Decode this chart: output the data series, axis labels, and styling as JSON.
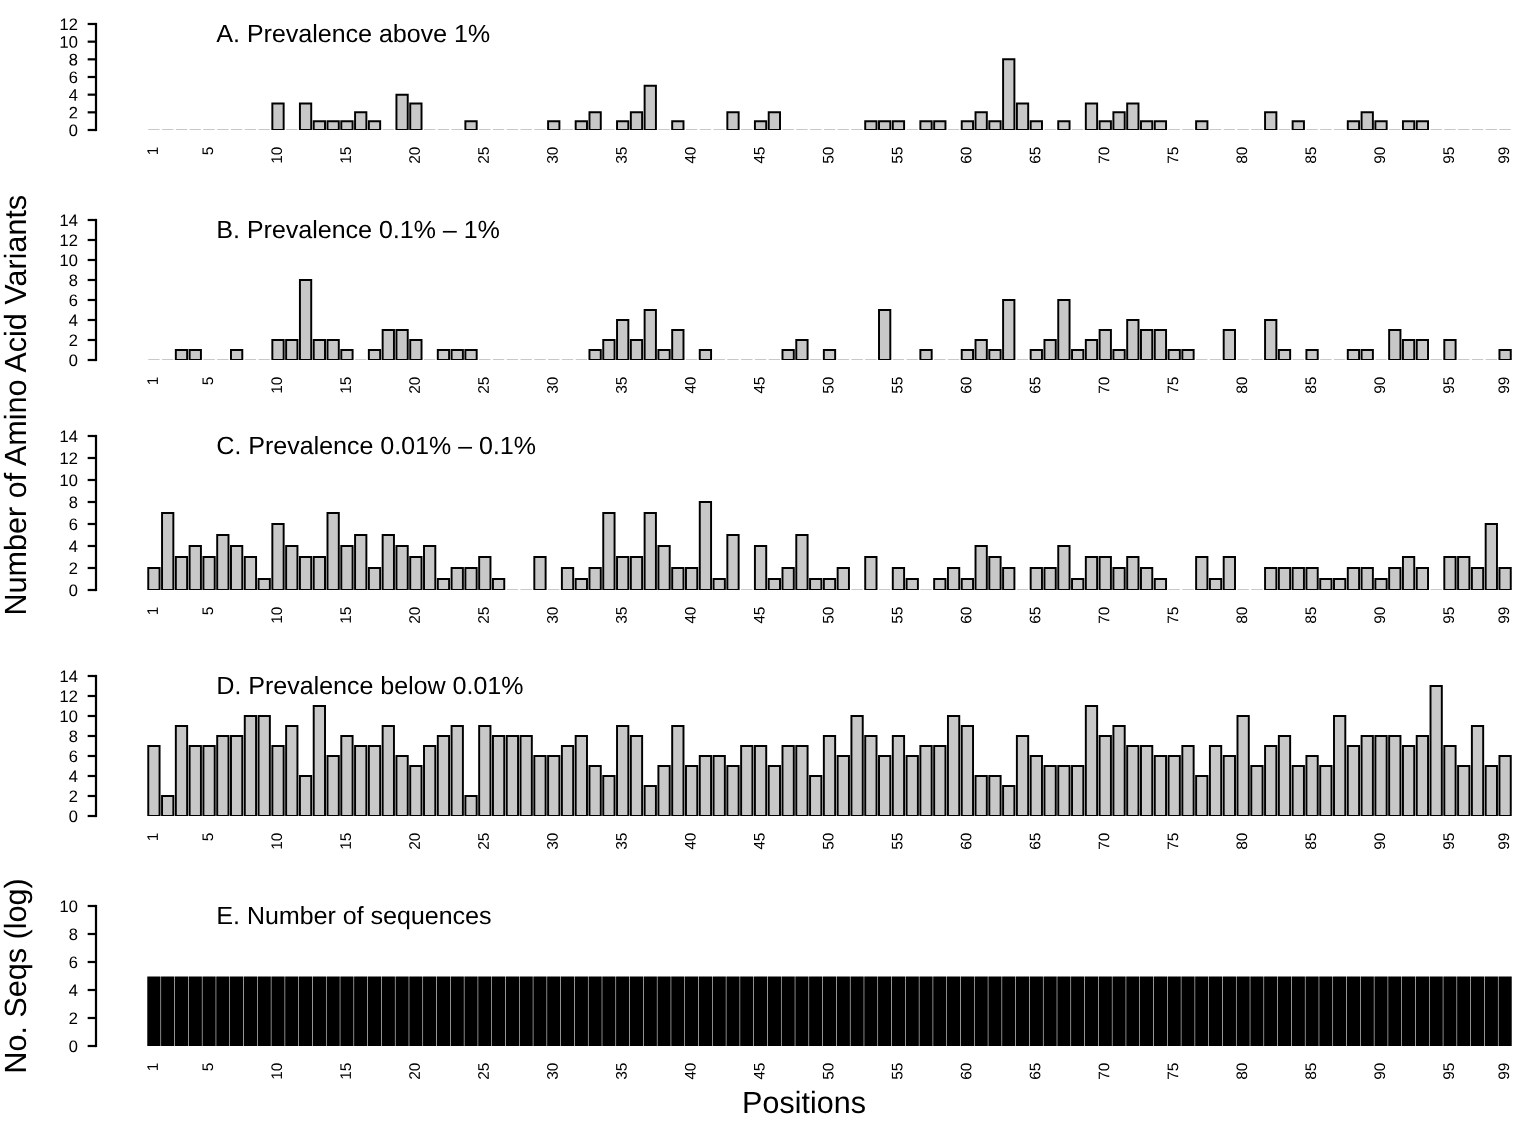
{
  "chart_data": [
    {
      "type": "bar",
      "title": "A. Prevalence above 1%",
      "color": "#c8c8c8",
      "ylim": [
        0,
        12
      ],
      "yticks": [
        0,
        2,
        4,
        6,
        8,
        10,
        12
      ],
      "grid": false,
      "legend": false,
      "categories": [
        "1",
        null,
        null,
        null,
        "5",
        null,
        null,
        null,
        null,
        "10",
        null,
        null,
        null,
        null,
        "15",
        null,
        null,
        null,
        null,
        "20",
        null,
        null,
        null,
        null,
        "25",
        null,
        null,
        null,
        null,
        "30",
        null,
        null,
        null,
        null,
        "35",
        null,
        null,
        null,
        null,
        "40",
        null,
        null,
        null,
        null,
        "45",
        null,
        null,
        null,
        null,
        "50",
        null,
        null,
        null,
        null,
        "55",
        null,
        null,
        null,
        null,
        "60",
        null,
        null,
        null,
        null,
        "65",
        null,
        null,
        null,
        null,
        "70",
        null,
        null,
        null,
        null,
        "75",
        null,
        null,
        null,
        null,
        "80",
        null,
        null,
        null,
        null,
        "85",
        null,
        null,
        null,
        null,
        "90",
        null,
        null,
        null,
        null,
        "95",
        null,
        null,
        null,
        "99"
      ],
      "values": [
        0,
        0,
        0,
        0,
        0,
        0,
        0,
        0,
        0,
        3,
        0,
        3,
        1,
        1,
        1,
        2,
        1,
        0,
        4,
        3,
        0,
        0,
        0,
        1,
        0,
        0,
        0,
        0,
        0,
        1,
        0,
        1,
        2,
        0,
        1,
        2,
        5,
        0,
        1,
        0,
        0,
        0,
        2,
        0,
        1,
        2,
        0,
        0,
        0,
        0,
        0,
        0,
        1,
        1,
        1,
        0,
        1,
        1,
        0,
        1,
        2,
        1,
        8,
        3,
        1,
        0,
        1,
        0,
        3,
        1,
        2,
        3,
        1,
        1,
        0,
        0,
        1,
        0,
        0,
        0,
        0,
        2,
        0,
        1,
        0,
        0,
        0,
        1,
        2,
        1,
        0,
        1,
        1,
        0,
        0,
        0,
        0,
        0,
        0
      ]
    },
    {
      "type": "bar",
      "title": "B. Prevalence 0.1% – 1%",
      "color": "#c8c8c8",
      "ylim": [
        0,
        14
      ],
      "yticks": [
        0,
        2,
        4,
        6,
        8,
        10,
        12,
        14
      ],
      "grid": false,
      "legend": false,
      "categories": [
        "1",
        null,
        null,
        null,
        "5",
        null,
        null,
        null,
        null,
        "10",
        null,
        null,
        null,
        null,
        "15",
        null,
        null,
        null,
        null,
        "20",
        null,
        null,
        null,
        null,
        "25",
        null,
        null,
        null,
        null,
        "30",
        null,
        null,
        null,
        null,
        "35",
        null,
        null,
        null,
        null,
        "40",
        null,
        null,
        null,
        null,
        "45",
        null,
        null,
        null,
        null,
        "50",
        null,
        null,
        null,
        null,
        "55",
        null,
        null,
        null,
        null,
        "60",
        null,
        null,
        null,
        null,
        "65",
        null,
        null,
        null,
        null,
        "70",
        null,
        null,
        null,
        null,
        "75",
        null,
        null,
        null,
        null,
        "80",
        null,
        null,
        null,
        null,
        "85",
        null,
        null,
        null,
        null,
        "90",
        null,
        null,
        null,
        null,
        "95",
        null,
        null,
        null,
        "99"
      ],
      "values": [
        0,
        0,
        1,
        1,
        0,
        0,
        1,
        0,
        0,
        2,
        2,
        8,
        2,
        2,
        1,
        0,
        1,
        3,
        3,
        2,
        0,
        1,
        1,
        1,
        0,
        0,
        0,
        0,
        0,
        0,
        0,
        0,
        1,
        2,
        4,
        2,
        5,
        1,
        3,
        0,
        1,
        0,
        0,
        0,
        0,
        0,
        1,
        2,
        0,
        1,
        0,
        0,
        0,
        5,
        0,
        0,
        1,
        0,
        0,
        1,
        2,
        1,
        6,
        0,
        1,
        2,
        6,
        1,
        2,
        3,
        1,
        4,
        3,
        3,
        1,
        1,
        0,
        0,
        3,
        0,
        0,
        4,
        1,
        0,
        1,
        0,
        0,
        1,
        1,
        0,
        3,
        2,
        2,
        0,
        2,
        0,
        0,
        0,
        1
      ]
    },
    {
      "type": "bar",
      "title": "C. Prevalence 0.01% – 0.1%",
      "ylabel": "Number of Amino Acid Variants",
      "color": "#c8c8c8",
      "ylim": [
        0,
        14
      ],
      "yticks": [
        0,
        2,
        4,
        6,
        8,
        10,
        12,
        14
      ],
      "grid": false,
      "legend": false,
      "categories": [
        "1",
        null,
        null,
        null,
        "5",
        null,
        null,
        null,
        null,
        "10",
        null,
        null,
        null,
        null,
        "15",
        null,
        null,
        null,
        null,
        "20",
        null,
        null,
        null,
        null,
        "25",
        null,
        null,
        null,
        null,
        "30",
        null,
        null,
        null,
        null,
        "35",
        null,
        null,
        null,
        null,
        "40",
        null,
        null,
        null,
        null,
        "45",
        null,
        null,
        null,
        null,
        "50",
        null,
        null,
        null,
        null,
        "55",
        null,
        null,
        null,
        null,
        "60",
        null,
        null,
        null,
        null,
        "65",
        null,
        null,
        null,
        null,
        "70",
        null,
        null,
        null,
        null,
        "75",
        null,
        null,
        null,
        null,
        "80",
        null,
        null,
        null,
        null,
        "85",
        null,
        null,
        null,
        null,
        "90",
        null,
        null,
        null,
        null,
        "95",
        null,
        null,
        null,
        "99"
      ],
      "values": [
        2,
        7,
        3,
        4,
        3,
        5,
        4,
        3,
        1,
        6,
        4,
        3,
        3,
        7,
        4,
        5,
        2,
        5,
        4,
        3,
        4,
        1,
        2,
        2,
        3,
        1,
        0,
        0,
        3,
        0,
        2,
        1,
        2,
        7,
        3,
        3,
        7,
        4,
        2,
        2,
        8,
        1,
        5,
        0,
        4,
        1,
        2,
        5,
        1,
        1,
        2,
        0,
        3,
        0,
        2,
        1,
        0,
        1,
        2,
        1,
        4,
        3,
        2,
        0,
        2,
        2,
        4,
        1,
        3,
        3,
        2,
        3,
        2,
        1,
        0,
        0,
        3,
        1,
        3,
        0,
        0,
        2,
        2,
        2,
        2,
        1,
        1,
        2,
        2,
        1,
        2,
        3,
        2,
        0,
        3,
        3,
        2,
        6,
        2
      ]
    },
    {
      "type": "bar",
      "title": "D. Prevalence below 0.01%",
      "color": "#c8c8c8",
      "ylim": [
        0,
        14
      ],
      "yticks": [
        0,
        2,
        4,
        6,
        8,
        10,
        12,
        14
      ],
      "grid": false,
      "legend": false,
      "categories": [
        "1",
        null,
        null,
        null,
        "5",
        null,
        null,
        null,
        null,
        "10",
        null,
        null,
        null,
        null,
        "15",
        null,
        null,
        null,
        null,
        "20",
        null,
        null,
        null,
        null,
        "25",
        null,
        null,
        null,
        null,
        "30",
        null,
        null,
        null,
        null,
        "35",
        null,
        null,
        null,
        null,
        "40",
        null,
        null,
        null,
        null,
        "45",
        null,
        null,
        null,
        null,
        "50",
        null,
        null,
        null,
        null,
        "55",
        null,
        null,
        null,
        null,
        "60",
        null,
        null,
        null,
        null,
        "65",
        null,
        null,
        null,
        null,
        "70",
        null,
        null,
        null,
        null,
        "75",
        null,
        null,
        null,
        null,
        "80",
        null,
        null,
        null,
        null,
        "85",
        null,
        null,
        null,
        null,
        "90",
        null,
        null,
        null,
        null,
        "95",
        null,
        null,
        null,
        "99"
      ],
      "values": [
        7,
        2,
        9,
        7,
        7,
        8,
        8,
        10,
        10,
        7,
        9,
        4,
        11,
        6,
        8,
        7,
        7,
        9,
        6,
        5,
        7,
        8,
        9,
        2,
        9,
        8,
        8,
        8,
        6,
        6,
        7,
        8,
        5,
        4,
        9,
        8,
        3,
        5,
        9,
        5,
        6,
        6,
        5,
        7,
        7,
        5,
        7,
        7,
        4,
        8,
        6,
        10,
        8,
        6,
        8,
        6,
        7,
        7,
        10,
        9,
        4,
        4,
        3,
        8,
        6,
        5,
        5,
        5,
        11,
        8,
        9,
        7,
        7,
        6,
        6,
        7,
        4,
        7,
        6,
        10,
        5,
        7,
        8,
        5,
        6,
        5,
        10,
        7,
        8,
        8,
        8,
        7,
        8,
        13,
        7,
        5,
        9,
        5,
        6
      ]
    },
    {
      "type": "bar",
      "title": "E. Number of sequences",
      "ylabel": "No. Seqs (log)",
      "xlabel": "Positions",
      "color": "#000000",
      "ylim": [
        0,
        10
      ],
      "yticks": [
        0,
        2,
        4,
        6,
        8,
        10
      ],
      "grid": false,
      "legend": false,
      "categories": [
        "1",
        null,
        null,
        null,
        "5",
        null,
        null,
        null,
        null,
        "10",
        null,
        null,
        null,
        null,
        "15",
        null,
        null,
        null,
        null,
        "20",
        null,
        null,
        null,
        null,
        "25",
        null,
        null,
        null,
        null,
        "30",
        null,
        null,
        null,
        null,
        "35",
        null,
        null,
        null,
        null,
        "40",
        null,
        null,
        null,
        null,
        "45",
        null,
        null,
        null,
        null,
        "50",
        null,
        null,
        null,
        null,
        "55",
        null,
        null,
        null,
        null,
        "60",
        null,
        null,
        null,
        null,
        "65",
        null,
        null,
        null,
        null,
        "70",
        null,
        null,
        null,
        null,
        "75",
        null,
        null,
        null,
        null,
        "80",
        null,
        null,
        null,
        null,
        "85",
        null,
        null,
        null,
        null,
        "90",
        null,
        null,
        null,
        null,
        "95",
        null,
        null,
        null,
        "99"
      ],
      "values": [
        4.9,
        4.9,
        4.9,
        4.9,
        4.9,
        4.9,
        4.9,
        4.9,
        4.9,
        4.9,
        4.9,
        4.9,
        4.9,
        4.9,
        4.9,
        4.9,
        4.9,
        4.9,
        4.9,
        4.9,
        4.9,
        4.9,
        4.9,
        4.9,
        4.9,
        4.9,
        4.9,
        4.9,
        4.9,
        4.9,
        4.9,
        4.9,
        4.9,
        4.9,
        4.9,
        4.9,
        4.9,
        4.9,
        4.9,
        4.9,
        4.9,
        4.9,
        4.9,
        4.9,
        4.9,
        4.9,
        4.9,
        4.9,
        4.9,
        4.9,
        4.9,
        4.9,
        4.9,
        4.9,
        4.9,
        4.9,
        4.9,
        4.9,
        4.9,
        4.9,
        4.9,
        4.9,
        4.9,
        4.9,
        4.9,
        4.9,
        4.9,
        4.9,
        4.9,
        4.9,
        4.9,
        4.9,
        4.9,
        4.9,
        4.9,
        4.9,
        4.9,
        4.9,
        4.9,
        4.9,
        4.9,
        4.9,
        4.9,
        4.9,
        4.9,
        4.9,
        4.9,
        4.9,
        4.9,
        4.9,
        4.9,
        4.9,
        4.9,
        4.9,
        4.9,
        4.9,
        4.9,
        4.9,
        4.9
      ]
    }
  ]
}
